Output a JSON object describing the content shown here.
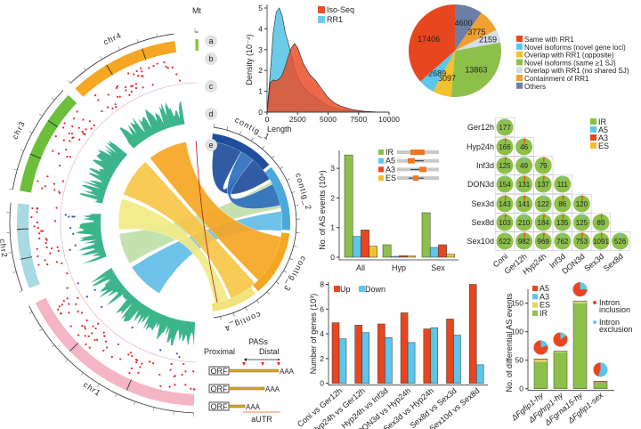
{
  "chart_data": [
    {
      "type": "circos",
      "chromosomes": [
        {
          "name": "chr1",
          "color": "#f4b6c4"
        },
        {
          "name": "chr2",
          "color": "#a9d9e3"
        },
        {
          "name": "chr3",
          "color": "#6cbf3a"
        },
        {
          "name": "chr4",
          "color": "#f5a623"
        },
        {
          "name": "Mt",
          "color": "#8dc63f"
        }
      ],
      "track_labels": [
        "a",
        "b",
        "c",
        "d",
        "e"
      ],
      "contigs": [
        "contig_1",
        "contig_2",
        "contig_3",
        "contig_4"
      ],
      "colors": {
        "snp_dots": "#e8262a",
        "density_track": "#3cb58a",
        "ring_line": "#f0b8c8"
      }
    },
    {
      "type": "area",
      "xlabel": "Length",
      "ylabel": "Density (10⁻⁴)",
      "xlim": [
        0,
        10000
      ],
      "ylim": [
        0,
        5
      ],
      "xticks": [
        "0",
        "2500",
        "5000",
        "7500",
        "10000"
      ],
      "yticks": [
        "0",
        "1",
        "2",
        "3",
        "4",
        "5"
      ],
      "legend": "top-right",
      "x": [
        0,
        250,
        500,
        750,
        1000,
        1250,
        1500,
        1750,
        2000,
        2250,
        2500,
        2750,
        3000,
        3500,
        4000,
        4500,
        5000,
        5500,
        6000,
        7000,
        8000,
        9000,
        10000
      ],
      "series": [
        {
          "name": "RR1",
          "color": "#6dcbea",
          "values": [
            0,
            1.8,
            3.8,
            4.8,
            5.0,
            4.6,
            3.8,
            3.3,
            2.7,
            2.1,
            1.7,
            1.4,
            1.2,
            0.9,
            0.7,
            0.5,
            0.3,
            0.2,
            0.12,
            0.05,
            0.02,
            0,
            0
          ]
        },
        {
          "name": "Iso-Seq",
          "color": "#e8502a",
          "values": [
            0,
            1.4,
            1.55,
            1.5,
            1.6,
            1.8,
            2.2,
            2.7,
            3.1,
            3.3,
            3.1,
            2.7,
            2.3,
            1.8,
            1.5,
            1.1,
            0.7,
            0.45,
            0.3,
            0.12,
            0.04,
            0.01,
            0
          ]
        }
      ]
    },
    {
      "type": "pie",
      "labels": [
        "Others",
        "Containment of RR1",
        "Overlap with RR1 (no shared SJ)",
        "Novel isoforms (same ≥1 SJ)",
        "Overlap with RR1 (opposite)",
        "Novel isoforms (novel gene loci)",
        "Same with RR1"
      ],
      "values": [
        4600,
        3775,
        2159,
        13863,
        3097,
        2689,
        17406
      ],
      "value_labels": [
        "4600",
        "3775",
        "2159",
        "13863",
        "3097",
        "2689",
        "17406"
      ],
      "colors": [
        "#6b7fa6",
        "#f0a030",
        "#d5dde6",
        "#8dc04a",
        "#f2c12e",
        "#5bc6ea",
        "#e8461e"
      ],
      "legend_order": [
        6,
        5,
        4,
        3,
        2,
        1,
        0
      ],
      "legend": "right"
    },
    {
      "type": "bar",
      "categories": [
        "All",
        "Hyp",
        "Sex"
      ],
      "ylabel": "No. of AS events (10⁴)",
      "ylim": [
        0,
        3.6
      ],
      "yticks": [
        "0",
        "1",
        "2",
        "3"
      ],
      "legend": "top-right",
      "series": [
        {
          "name": "IR",
          "color": "#8dc04a",
          "values": [
            3.45,
            0.42,
            1.5
          ]
        },
        {
          "name": "A5",
          "color": "#5bc6ea",
          "values": [
            0.7,
            0.03,
            0.33
          ]
        },
        {
          "name": "A3",
          "color": "#e8461e",
          "values": [
            0.92,
            0.05,
            0.42
          ]
        },
        {
          "name": "ES",
          "color": "#f2c12e",
          "values": [
            0.37,
            0.04,
            0.1
          ]
        }
      ]
    },
    {
      "type": "table",
      "rows": [
        "Ger12h",
        "Hyp24h",
        "Inf3d",
        "DON3d",
        "Sex3d",
        "Sex8d",
        "Sex10d"
      ],
      "columns": [
        "Coni",
        "Ger12h",
        "Hyp24h",
        "Inf3d",
        "DON3d",
        "Sex3d",
        "Sex8d"
      ],
      "values": [
        [
          "177"
        ],
        [
          "166",
          "46"
        ],
        [
          "125",
          "49",
          "79"
        ],
        [
          "154",
          "131",
          "137",
          "111"
        ],
        [
          "143",
          "141",
          "122",
          "86",
          "120"
        ],
        [
          "103",
          "210",
          "184",
          "135",
          "125",
          "89"
        ],
        [
          "522",
          "982",
          "969",
          "762",
          "753",
          "1091",
          "526"
        ]
      ],
      "legend": [
        {
          "name": "IR",
          "color": "#8dc04a"
        },
        {
          "name": "A5",
          "color": "#5bc6ea"
        },
        {
          "name": "A3",
          "color": "#e8461e"
        },
        {
          "name": "ES",
          "color": "#f2c12e"
        }
      ]
    },
    {
      "type": "bar",
      "categories": [
        "Coni vs Ger12h",
        "Hyp24h vs Ger12h",
        "Hyp24h vs Inf3d",
        "DON3d vs Hyp24h",
        "Sex3d vs Hyp24h",
        "Sex8d vs Sex3d",
        "Sex10d vs Sex8d"
      ],
      "ylabel": "Number of genes (10³)",
      "ylim": [
        0,
        8
      ],
      "yticks": [
        "0",
        "2",
        "4",
        "6",
        "8"
      ],
      "legend": "top-left",
      "series": [
        {
          "name": "Up",
          "color": "#e8461e",
          "values": [
            4.9,
            4.7,
            4.8,
            5.7,
            4.4,
            5.2,
            8.0
          ]
        },
        {
          "name": "Down",
          "color": "#5bc6ea",
          "values": [
            3.6,
            4.1,
            3.7,
            3.3,
            4.5,
            3.9,
            1.5
          ]
        }
      ]
    },
    {
      "type": "bar",
      "stacked": true,
      "categories": [
        "ΔFgfip1-hy",
        "ΔFghrp1-hy",
        "ΔFgrna15-hy",
        "ΔFgfip1-sex"
      ],
      "ylabel": "No. of differential AS events",
      "ylim": [
        0,
        175
      ],
      "yticks": [
        "0",
        "50",
        "100",
        "150"
      ],
      "legend": "top-left",
      "series": [
        {
          "name": "IR",
          "color": "#8dc04a",
          "values": [
            47,
            64,
            150,
            11
          ]
        },
        {
          "name": "ES",
          "color": "#e3d35a",
          "values": [
            4,
            1,
            3,
            0
          ]
        },
        {
          "name": "A3",
          "color": "#5bc6ea",
          "values": [
            0,
            0.5,
            0.5,
            0.5
          ]
        },
        {
          "name": "A5",
          "color": "#e8461e",
          "values": [
            1,
            0.5,
            0.5,
            1.5
          ]
        }
      ],
      "legend_order": [
        "A5",
        "A3",
        "ES",
        "IR"
      ],
      "intron_pies": {
        "labels": [
          [
            "Intron",
            "inclusion"
          ],
          [
            "Intron",
            "exclusion"
          ]
        ],
        "colors": [
          "#e8461e",
          "#5bc6ea"
        ],
        "inclusion_fraction": [
          0.8,
          0.85,
          0.75,
          0.45
        ]
      }
    }
  ],
  "pas_diagram": {
    "title": "PASs",
    "proximal": "Proximal",
    "distal": "Distal",
    "orf": "ORF",
    "poly_a": "AAA",
    "autr": "aUTR",
    "colors": {
      "utr": "#d4a82a",
      "pas": "#e8261a",
      "autr_arrow": "#f08050"
    }
  }
}
